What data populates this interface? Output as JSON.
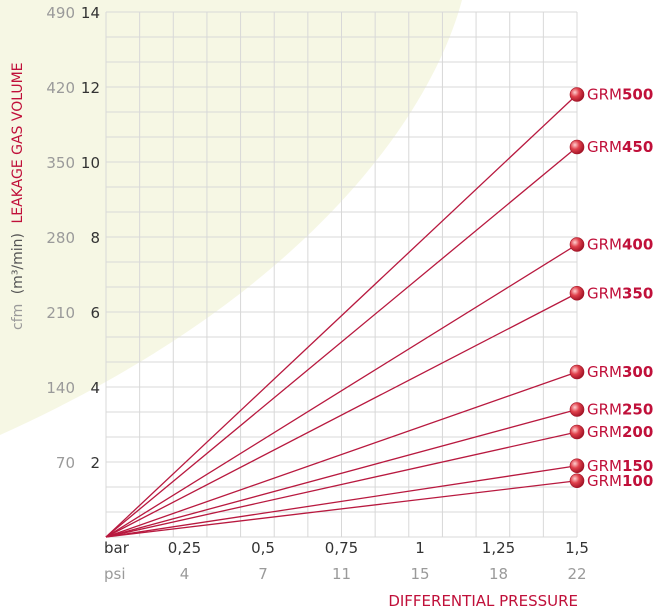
{
  "chart_data": {
    "type": "line",
    "ylabel": {
      "unit_prefix": "cfm",
      "unit_metric": "(m³/min)",
      "title": "LEAKAGE GAS VOLUME"
    },
    "xlabel": "DIFFERENTIAL PRESSURE",
    "x_unit_bar": "bar",
    "x_unit_psi": "psi",
    "x_ticks_bar": [
      "0,25",
      "0,5",
      "0,75",
      "1",
      "1,25",
      "1,5"
    ],
    "x_ticks_psi": [
      "4",
      "7",
      "11",
      "15",
      "18",
      "22"
    ],
    "y_ticks_m3": [
      "2",
      "4",
      "6",
      "8",
      "10",
      "12",
      "14"
    ],
    "y_ticks_cfm": [
      "70",
      "140",
      "210",
      "280",
      "350",
      "420",
      "490"
    ],
    "xlim": [
      0,
      1.5
    ],
    "ylim": [
      0,
      14
    ],
    "grid": true,
    "colors": {
      "line": "#b8193f",
      "marker": "#d63040",
      "accent": "#c0103a",
      "grid": "#d8d8d8",
      "background_arc": "#f6f7e4"
    },
    "series": [
      {
        "prefix": "GRM",
        "name": "500",
        "x": [
          0,
          1.5
        ],
        "y": [
          0,
          11.8
        ]
      },
      {
        "prefix": "GRM",
        "name": "450",
        "x": [
          0,
          1.5
        ],
        "y": [
          0,
          10.4
        ]
      },
      {
        "prefix": "GRM",
        "name": "400",
        "x": [
          0,
          1.5
        ],
        "y": [
          0,
          7.8
        ]
      },
      {
        "prefix": "GRM",
        "name": "350",
        "x": [
          0,
          1.5
        ],
        "y": [
          0,
          6.5
        ]
      },
      {
        "prefix": "GRM",
        "name": "300",
        "x": [
          0,
          1.5
        ],
        "y": [
          0,
          4.4
        ]
      },
      {
        "prefix": "GRM",
        "name": "250",
        "x": [
          0,
          1.5
        ],
        "y": [
          0,
          3.4
        ]
      },
      {
        "prefix": "GRM",
        "name": "200",
        "x": [
          0,
          1.5
        ],
        "y": [
          0,
          2.8
        ]
      },
      {
        "prefix": "GRM",
        "name": "150",
        "x": [
          0,
          1.5
        ],
        "y": [
          0,
          1.9
        ]
      },
      {
        "prefix": "GRM",
        "name": "100",
        "x": [
          0,
          1.5
        ],
        "y": [
          0,
          1.5
        ]
      }
    ]
  }
}
